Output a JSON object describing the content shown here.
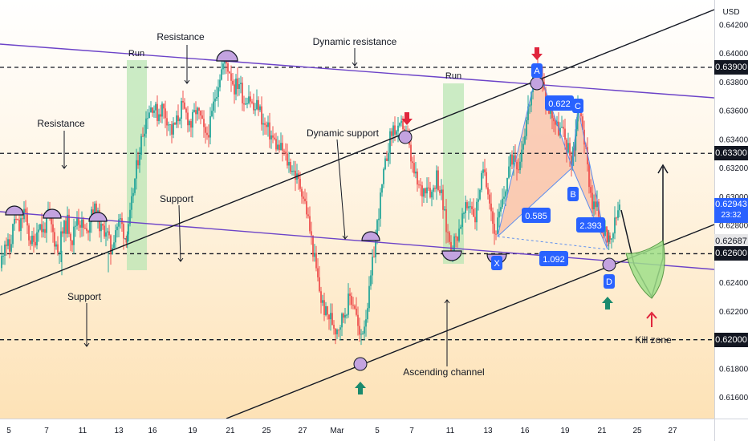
{
  "currency": "USD",
  "chart_data": {
    "type": "candlestick",
    "price_axis": {
      "ticks": [
        "0.64200",
        "0.64000",
        "0.63800",
        "0.63600",
        "0.63400",
        "0.63200",
        "0.63000",
        "0.62800",
        "0.62600",
        "0.62400",
        "0.62200",
        "0.62000",
        "0.61800",
        "0.61600"
      ],
      "range": [
        0.6145,
        0.6437
      ]
    },
    "time_axis": {
      "ticks": [
        "5",
        "7",
        "11",
        "13",
        "16",
        "19",
        "21",
        "25",
        "27",
        "Mar",
        "5",
        "7",
        "11",
        "13",
        "16",
        "19",
        "21",
        "25",
        "27"
      ]
    },
    "price_badges": [
      {
        "value": "0.63900",
        "style": "dark"
      },
      {
        "value": "0.63300",
        "style": "dark"
      },
      {
        "value": "0.62943",
        "sub": "23:32",
        "style": "blue"
      },
      {
        "value": "0.62687",
        "style": "gray"
      },
      {
        "value": "0.62600",
        "style": "dark"
      },
      {
        "value": "0.62000",
        "style": "dark"
      }
    ],
    "horizontal_levels": [
      0.639,
      0.633,
      0.626,
      0.62
    ],
    "price_path": [
      [
        0,
        0.625
      ],
      [
        6,
        0.627
      ],
      [
        12,
        0.6262
      ],
      [
        18,
        0.6285
      ],
      [
        24,
        0.6277
      ],
      [
        30,
        0.629
      ],
      [
        36,
        0.6272
      ],
      [
        42,
        0.6266
      ],
      [
        48,
        0.6282
      ],
      [
        54,
        0.6275
      ],
      [
        60,
        0.6288
      ],
      [
        66,
        0.6274
      ],
      [
        72,
        0.6262
      ],
      [
        78,
        0.6275
      ],
      [
        84,
        0.6282
      ],
      [
        90,
        0.627
      ],
      [
        96,
        0.6286
      ],
      [
        102,
        0.628
      ],
      [
        108,
        0.6273
      ],
      [
        114,
        0.6292
      ],
      [
        120,
        0.6289
      ],
      [
        126,
        0.6276
      ],
      [
        132,
        0.6278
      ],
      [
        138,
        0.6262
      ],
      [
        144,
        0.6278
      ],
      [
        150,
        0.6283
      ],
      [
        156,
        0.6272
      ],
      [
        160,
        0.6276
      ],
      [
        166,
        0.6304
      ],
      [
        172,
        0.6327
      ],
      [
        178,
        0.6345
      ],
      [
        184,
        0.6359
      ],
      [
        190,
        0.6364
      ],
      [
        196,
        0.6357
      ],
      [
        202,
        0.6362
      ],
      [
        208,
        0.6355
      ],
      [
        214,
        0.6345
      ],
      [
        220,
        0.6352
      ],
      [
        226,
        0.6362
      ],
      [
        232,
        0.6357
      ],
      [
        238,
        0.635
      ],
      [
        244,
        0.636
      ],
      [
        250,
        0.6354
      ],
      [
        256,
        0.634
      ],
      [
        262,
        0.635
      ],
      [
        268,
        0.637
      ],
      [
        274,
        0.6385
      ],
      [
        280,
        0.6395
      ],
      [
        286,
        0.6388
      ],
      [
        292,
        0.6376
      ],
      [
        298,
        0.638
      ],
      [
        304,
        0.6366
      ],
      [
        310,
        0.6372
      ],
      [
        316,
        0.636
      ],
      [
        322,
        0.6364
      ],
      [
        328,
        0.635
      ],
      [
        334,
        0.6346
      ],
      [
        340,
        0.634
      ],
      [
        346,
        0.6334
      ],
      [
        352,
        0.6332
      ],
      [
        358,
        0.6324
      ],
      [
        364,
        0.632
      ],
      [
        370,
        0.6312
      ],
      [
        376,
        0.6305
      ],
      [
        382,
        0.629
      ],
      [
        388,
        0.627
      ],
      [
        394,
        0.6248
      ],
      [
        400,
        0.6228
      ],
      [
        406,
        0.6218
      ],
      [
        412,
        0.6215
      ],
      [
        418,
        0.6208
      ],
      [
        424,
        0.6212
      ],
      [
        430,
        0.622
      ],
      [
        436,
        0.623
      ],
      [
        442,
        0.6224
      ],
      [
        448,
        0.62
      ],
      [
        454,
        0.6212
      ],
      [
        460,
        0.6232
      ],
      [
        466,
        0.6262
      ],
      [
        472,
        0.629
      ],
      [
        478,
        0.6314
      ],
      [
        484,
        0.6336
      ],
      [
        490,
        0.6348
      ],
      [
        496,
        0.6344
      ],
      [
        502,
        0.635
      ],
      [
        508,
        0.6338
      ],
      [
        514,
        0.632
      ],
      [
        520,
        0.6308
      ],
      [
        526,
        0.6303
      ],
      [
        532,
        0.631
      ],
      [
        538,
        0.6302
      ],
      [
        544,
        0.6315
      ],
      [
        550,
        0.63
      ],
      [
        556,
        0.6278
      ],
      [
        562,
        0.6265
      ],
      [
        568,
        0.627
      ],
      [
        574,
        0.6282
      ],
      [
        580,
        0.629
      ],
      [
        586,
        0.6296
      ],
      [
        592,
        0.6285
      ],
      [
        598,
        0.6308
      ],
      [
        604,
        0.6318
      ],
      [
        610,
        0.63
      ],
      [
        616,
        0.6274
      ],
      [
        622,
        0.6285
      ],
      [
        628,
        0.63
      ],
      [
        634,
        0.632
      ],
      [
        640,
        0.633
      ],
      [
        646,
        0.6322
      ],
      [
        652,
        0.634
      ],
      [
        658,
        0.636
      ],
      [
        664,
        0.6378
      ],
      [
        670,
        0.6388
      ],
      [
        676,
        0.6378
      ],
      [
        682,
        0.6362
      ],
      [
        688,
        0.6358
      ],
      [
        694,
        0.6348
      ],
      [
        700,
        0.6346
      ],
      [
        706,
        0.6336
      ],
      [
        712,
        0.6326
      ],
      [
        716,
        0.6336
      ],
      [
        720,
        0.6366
      ],
      [
        726,
        0.635
      ],
      [
        732,
        0.632
      ],
      [
        738,
        0.6295
      ],
      [
        744,
        0.6292
      ],
      [
        750,
        0.628
      ],
      [
        756,
        0.627
      ],
      [
        760,
        0.6266
      ],
      [
        766,
        0.628
      ],
      [
        772,
        0.6294
      ]
    ],
    "annotations": [
      {
        "text": "Resistance"
      },
      {
        "text": "Dynamic resistance"
      },
      {
        "text": "Run"
      },
      {
        "text": "Run"
      },
      {
        "text": "Resistance"
      },
      {
        "text": "Dynamic support"
      },
      {
        "text": "Support"
      },
      {
        "text": "Support"
      },
      {
        "text": "Ascending channel"
      },
      {
        "text": "Kill zone"
      }
    ],
    "pattern": {
      "points": [
        {
          "label": "X",
          "price": 0.6272
        },
        {
          "label": "A",
          "price": 0.639
        },
        {
          "label": "B",
          "price": 0.632
        },
        {
          "label": "C",
          "price": 0.6362
        },
        {
          "label": "D",
          "price": 0.6263
        }
      ],
      "ratios": [
        "0.622",
        "0.585",
        "2.393",
        "1.092"
      ]
    }
  }
}
